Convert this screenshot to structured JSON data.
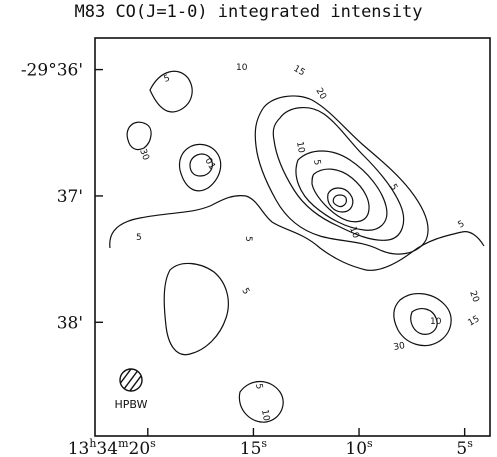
{
  "title": "M83 CO(J=1-0) integrated intensity",
  "beam_label": "HPBW",
  "chart_data": {
    "type": "contour",
    "title": "M83 CO(J=1-0) integrated intensity",
    "xlabel": "",
    "ylabel": "",
    "x_axis": {
      "ticks": [
        {
          "value": 20,
          "h": "13",
          "m": "34",
          "s": "20"
        },
        {
          "value": 15,
          "s": "15"
        },
        {
          "value": 10,
          "s": "10"
        },
        {
          "value": 5,
          "s": "5"
        }
      ],
      "range_s": [
        22.5,
        3.8
      ],
      "reversed": true
    },
    "y_axis": {
      "ticks": [
        {
          "value": 0,
          "label": "-29°36'"
        },
        {
          "value": 1,
          "label": "37'"
        },
        {
          "value": 2,
          "label": "38'"
        }
      ],
      "range_arcmin": [
        -0.25,
        2.9
      ]
    },
    "contour_levels": [
      5,
      10,
      15,
      20,
      25,
      30
    ],
    "contour_labels_shown": [
      "5",
      "10",
      "15",
      "20",
      "30",
      "01",
      "10",
      "5",
      "5",
      "5",
      "5",
      "5",
      "10",
      "10",
      "5"
    ],
    "peak": {
      "ra_s": 11.5,
      "dec_arcmin": 0.66
    },
    "grid": false,
    "legend": "none"
  }
}
